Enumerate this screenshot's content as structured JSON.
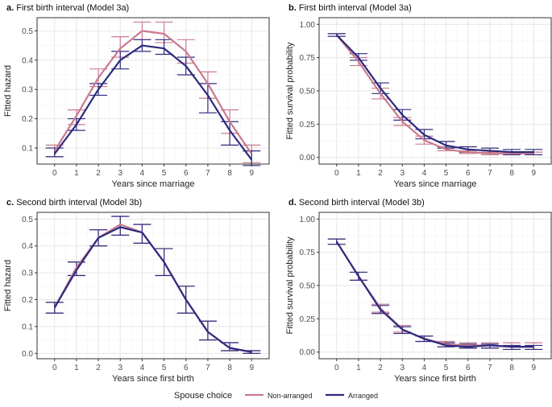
{
  "colors": {
    "non_arranged": "#c97b8e",
    "arranged": "#2e2a7e",
    "grid_major": "#e6e6e6",
    "grid_minor": "#f2f2f2",
    "axis_text": "#4d4d4d",
    "panel_border": "#333333"
  },
  "legend": {
    "title": "Spouse choice",
    "items": [
      {
        "key": "non_arranged",
        "label": "Non-arranged"
      },
      {
        "key": "arranged",
        "label": "Arranged"
      }
    ]
  },
  "chart_data": [
    {
      "id": "a",
      "type": "line",
      "title_letter": "a.",
      "title": "First birth interval (Model 3a)",
      "xlabel": "Years since marriage",
      "ylabel": "Fitted hazard",
      "x": [
        0,
        1,
        2,
        3,
        4,
        5,
        6,
        7,
        8,
        9
      ],
      "xlim": [
        -0.8,
        9.8
      ],
      "ylim": [
        0.045,
        0.545
      ],
      "yticks": [
        0.1,
        0.2,
        0.3,
        0.4,
        0.5
      ],
      "ytick_labels": [
        "0.1",
        "0.2",
        "0.3",
        "0.4",
        "0.5"
      ],
      "series": [
        {
          "name": "Non-arranged",
          "key": "non_arranged",
          "values": [
            0.09,
            0.21,
            0.34,
            0.44,
            0.5,
            0.49,
            0.43,
            0.32,
            0.19,
            0.08
          ],
          "lower": [
            0.07,
            0.18,
            0.31,
            0.41,
            0.47,
            0.46,
            0.39,
            0.27,
            0.15,
            0.05
          ],
          "upper": [
            0.11,
            0.23,
            0.37,
            0.48,
            0.53,
            0.53,
            0.47,
            0.36,
            0.23,
            0.11
          ]
        },
        {
          "name": "Arranged",
          "key": "arranged",
          "values": [
            0.08,
            0.18,
            0.3,
            0.4,
            0.45,
            0.44,
            0.38,
            0.28,
            0.16,
            0.06
          ],
          "lower": [
            0.07,
            0.16,
            0.28,
            0.37,
            0.43,
            0.42,
            0.35,
            0.22,
            0.11,
            0.04
          ],
          "upper": [
            0.1,
            0.2,
            0.32,
            0.43,
            0.47,
            0.47,
            0.41,
            0.32,
            0.19,
            0.09
          ]
        }
      ]
    },
    {
      "id": "b",
      "type": "line",
      "title_letter": "b.",
      "title": "First birth interval (Model 3a)",
      "xlabel": "Years since marriage",
      "ylabel": "Fitted survival probability",
      "x": [
        0,
        1,
        2,
        3,
        4,
        5,
        6,
        7,
        8,
        9
      ],
      "xlim": [
        -0.8,
        9.8
      ],
      "ylim": [
        -0.05,
        1.05
      ],
      "yticks": [
        0.0,
        0.25,
        0.5,
        0.75,
        1.0
      ],
      "ytick_labels": [
        "0.00",
        "0.25",
        "0.50",
        "0.75",
        "1.00"
      ],
      "series": [
        {
          "name": "Non-arranged",
          "key": "non_arranged",
          "values": [
            0.92,
            0.72,
            0.48,
            0.27,
            0.13,
            0.06,
            0.04,
            0.03,
            0.03,
            0.03
          ],
          "lower": [
            0.91,
            0.69,
            0.44,
            0.24,
            0.1,
            0.05,
            0.03,
            0.02,
            0.02,
            0.02
          ],
          "upper": [
            0.93,
            0.75,
            0.52,
            0.3,
            0.16,
            0.08,
            0.05,
            0.04,
            0.04,
            0.04
          ]
        },
        {
          "name": "Arranged",
          "key": "arranged",
          "values": [
            0.92,
            0.75,
            0.52,
            0.32,
            0.17,
            0.09,
            0.06,
            0.05,
            0.04,
            0.04
          ],
          "lower": [
            0.91,
            0.73,
            0.48,
            0.28,
            0.14,
            0.07,
            0.04,
            0.03,
            0.02,
            0.02
          ],
          "upper": [
            0.93,
            0.78,
            0.56,
            0.36,
            0.21,
            0.12,
            0.08,
            0.07,
            0.06,
            0.06
          ]
        }
      ]
    },
    {
      "id": "c",
      "type": "line",
      "title_letter": "c.",
      "title": "Second birth interval (Model 3b)",
      "xlabel": "Years since first birth",
      "ylabel": "Fitted hazard",
      "x": [
        0,
        1,
        2,
        3,
        4,
        5,
        6,
        7,
        8,
        9
      ],
      "xlim": [
        -0.8,
        9.8
      ],
      "ylim": [
        -0.02,
        0.525
      ],
      "yticks": [
        0.0,
        0.1,
        0.2,
        0.3,
        0.4,
        0.5
      ],
      "ytick_labels": [
        "0.0",
        "0.1",
        "0.2",
        "0.3",
        "0.4",
        "0.5"
      ],
      "series": [
        {
          "name": "Non-arranged",
          "key": "non_arranged",
          "values": [
            0.17,
            0.32,
            0.43,
            0.48,
            0.45,
            0.34,
            0.2,
            0.08,
            0.02,
            0.005
          ],
          "lower": [
            0.15,
            0.29,
            0.4,
            0.44,
            0.41,
            0.29,
            0.15,
            0.05,
            0.01,
            0.0
          ],
          "upper": [
            0.19,
            0.34,
            0.46,
            0.51,
            0.48,
            0.39,
            0.25,
            0.12,
            0.04,
            0.01
          ]
        },
        {
          "name": "Arranged",
          "key": "arranged",
          "values": [
            0.17,
            0.31,
            0.43,
            0.47,
            0.45,
            0.34,
            0.2,
            0.08,
            0.02,
            0.005
          ],
          "lower": [
            0.15,
            0.29,
            0.4,
            0.44,
            0.41,
            0.29,
            0.15,
            0.05,
            0.01,
            0.0
          ],
          "upper": [
            0.19,
            0.34,
            0.46,
            0.51,
            0.48,
            0.39,
            0.25,
            0.12,
            0.04,
            0.01
          ]
        }
      ]
    },
    {
      "id": "d",
      "type": "line",
      "title_letter": "d.",
      "title": "Second birth interval (Model 3b)",
      "xlabel": "Years since first birth",
      "ylabel": "Fitted survival probability",
      "x": [
        0,
        1,
        2,
        3,
        4,
        5,
        6,
        7,
        8,
        9
      ],
      "xlim": [
        -0.8,
        9.8
      ],
      "ylim": [
        -0.05,
        1.05
      ],
      "yticks": [
        0.0,
        0.25,
        0.5,
        0.75,
        1.0
      ],
      "ytick_labels": [
        "0.00",
        "0.25",
        "0.50",
        "0.75",
        "1.00"
      ],
      "series": [
        {
          "name": "Non-arranged",
          "key": "non_arranged",
          "values": [
            0.83,
            0.57,
            0.33,
            0.17,
            0.1,
            0.06,
            0.05,
            0.05,
            0.04,
            0.04
          ],
          "lower": [
            0.81,
            0.54,
            0.3,
            0.15,
            0.08,
            0.04,
            0.03,
            0.03,
            0.02,
            0.02
          ],
          "upper": [
            0.85,
            0.6,
            0.36,
            0.2,
            0.12,
            0.08,
            0.07,
            0.07,
            0.07,
            0.07
          ]
        },
        {
          "name": "Arranged",
          "key": "arranged",
          "values": [
            0.83,
            0.57,
            0.32,
            0.17,
            0.1,
            0.05,
            0.04,
            0.05,
            0.04,
            0.04
          ],
          "lower": [
            0.81,
            0.54,
            0.29,
            0.14,
            0.08,
            0.04,
            0.03,
            0.03,
            0.02,
            0.02
          ],
          "upper": [
            0.85,
            0.6,
            0.35,
            0.19,
            0.12,
            0.07,
            0.06,
            0.06,
            0.05,
            0.05
          ]
        }
      ]
    }
  ]
}
